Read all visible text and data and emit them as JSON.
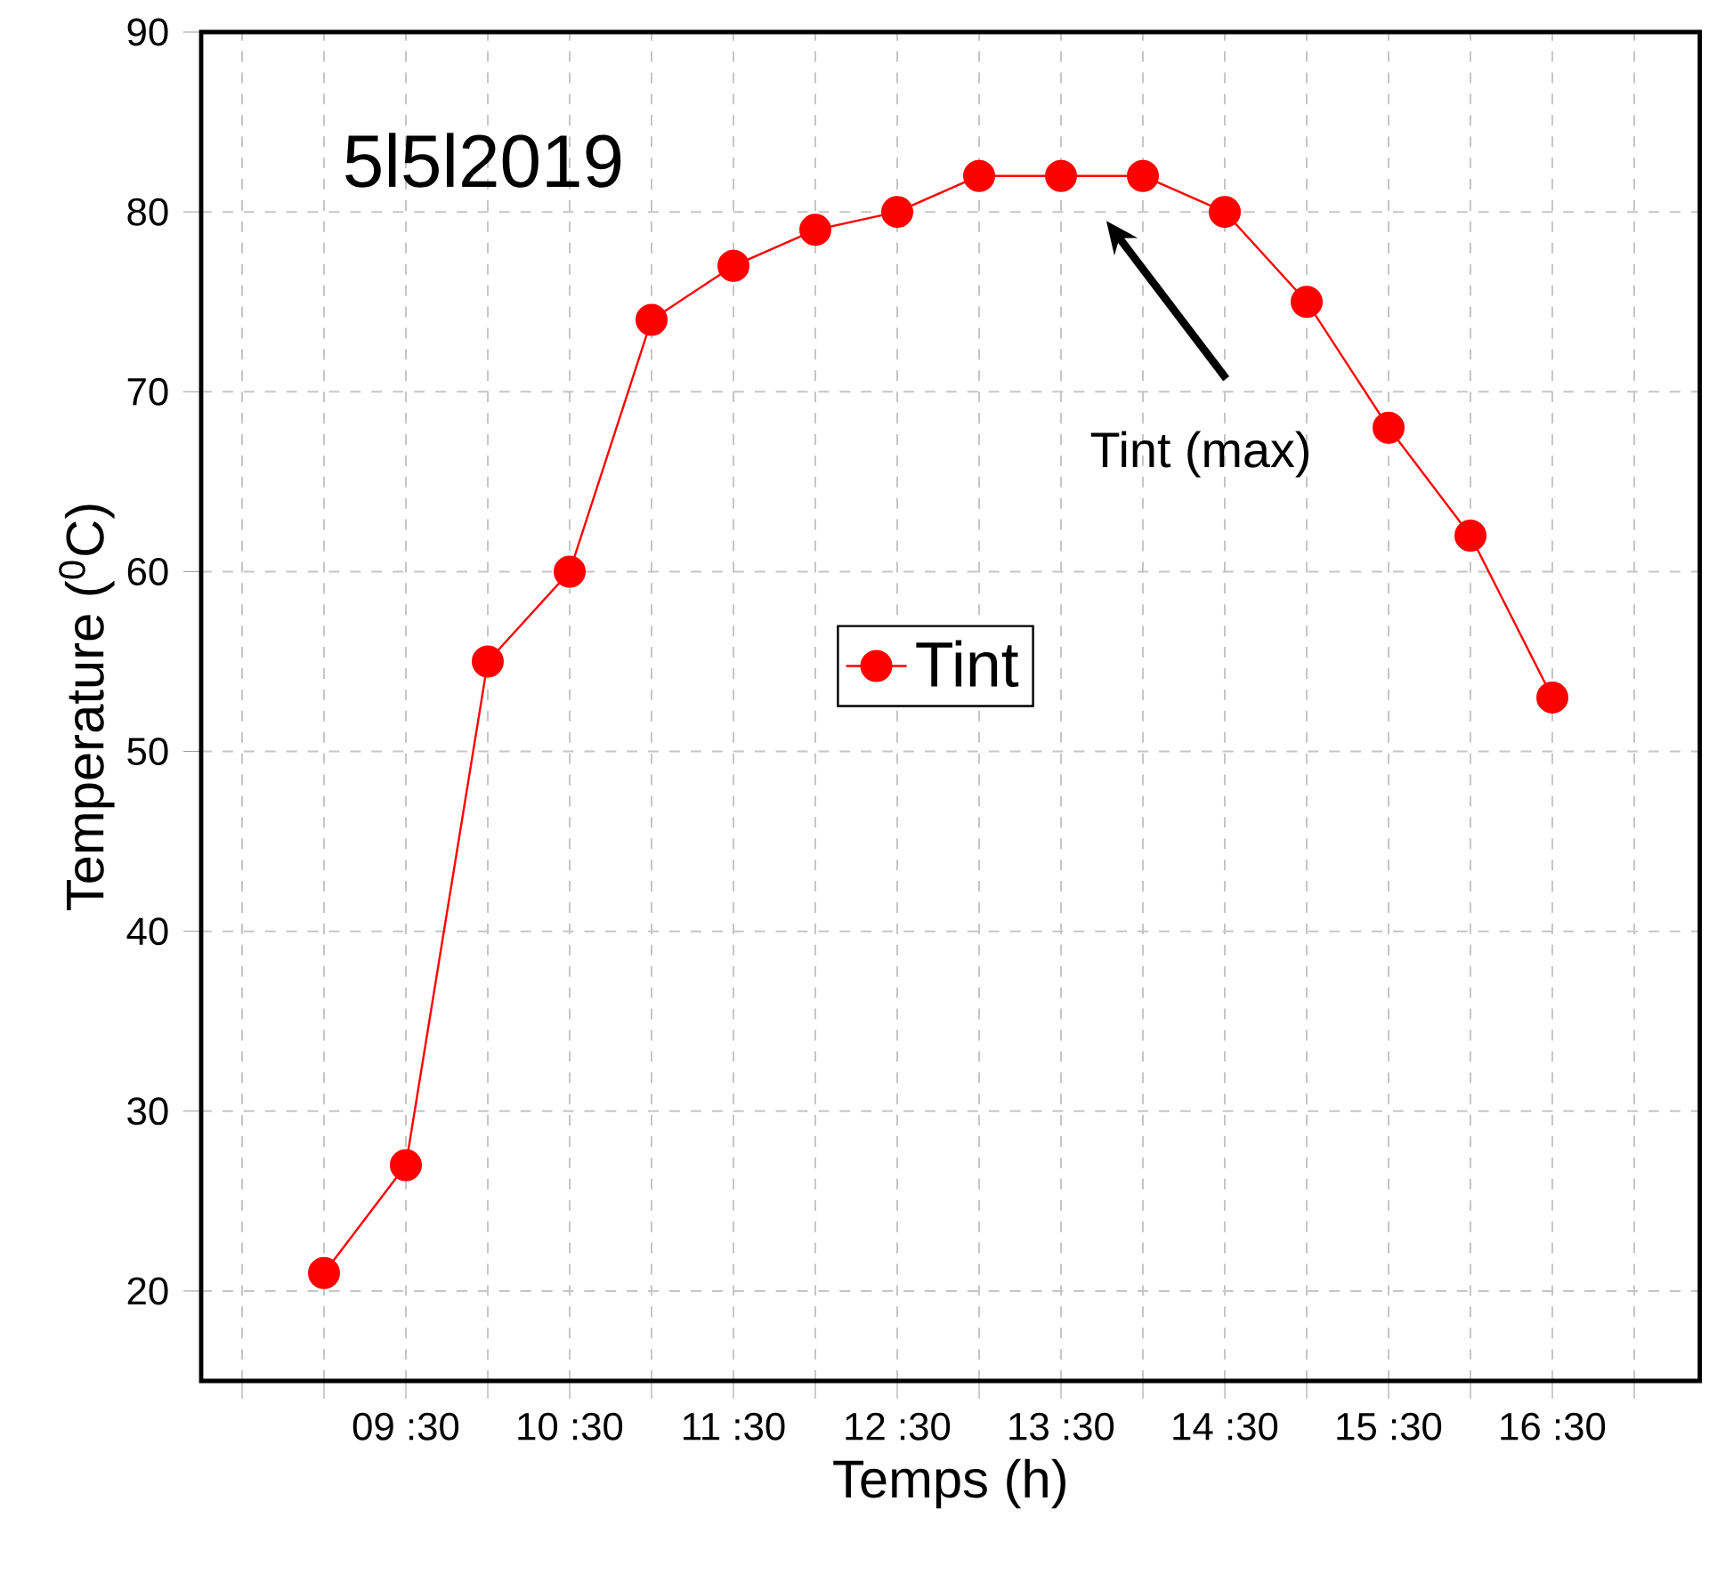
{
  "chart_data": {
    "type": "line",
    "xlabel": "Temps (h)",
    "ylabel": "Temperature ($^{0}$C)",
    "annotations": [
      "5l5l2019",
      "Tint (max)"
    ],
    "categories": [
      null,
      null,
      "09 :30",
      null,
      "10 :30",
      null,
      "11 :30",
      null,
      "12 :30",
      null,
      "13 :30",
      null,
      "14 :30",
      null,
      "15 :30",
      null,
      "16 :30",
      null
    ],
    "series": [
      {
        "name": "Tint",
        "color": "#ff0000",
        "values": [
          null,
          21,
          27,
          55,
          60,
          74,
          77,
          79,
          80,
          82,
          82,
          82,
          80,
          75,
          68,
          62,
          53,
          null
        ]
      }
    ],
    "ylim": [
      15,
      90
    ],
    "yticks": [
      20,
      30,
      40,
      50,
      60,
      70,
      80,
      90
    ],
    "grid": true,
    "legend": "center",
    "marker": "circle",
    "line_style": "solid"
  }
}
